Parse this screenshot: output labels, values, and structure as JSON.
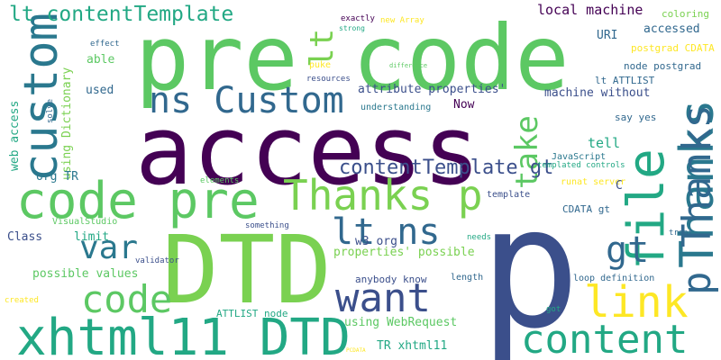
{
  "colors": {
    "background": "#ffffff",
    "palette": [
      "#440154",
      "#414487",
      "#2a788e",
      "#22a884",
      "#7ad151",
      "#fde725",
      "#5cc863",
      "#31688e"
    ]
  },
  "words": [
    {
      "text": "p",
      "color": "#3b4f8b"
    },
    {
      "text": "access",
      "color": "#440154"
    },
    {
      "text": "pre code",
      "color": "#5cc863"
    },
    {
      "text": "DTD",
      "color": "#7ad151"
    },
    {
      "text": "code pre",
      "color": "#5cc863"
    },
    {
      "text": "custom",
      "color": "#2a788e"
    },
    {
      "text": "file",
      "color": "#22a884"
    },
    {
      "text": "Thanks",
      "color": "#2a788e"
    },
    {
      "text": "xhtml11 DTD",
      "color": "#22a884"
    },
    {
      "text": "ns Custom",
      "color": "#31688e"
    },
    {
      "text": "Thanks p",
      "color": "#7ad151"
    },
    {
      "text": "link",
      "color": "#fde725"
    },
    {
      "text": "content",
      "color": "#22a884"
    },
    {
      "text": "want",
      "color": "#3b4f8b"
    },
    {
      "text": "code",
      "color": "#5cc863"
    },
    {
      "text": "lt ns",
      "color": "#31688e"
    },
    {
      "text": "var",
      "color": "#2a788e"
    },
    {
      "text": "gt",
      "color": "#31688e"
    },
    {
      "text": "p Thanks",
      "color": "#31688e"
    },
    {
      "text": "take",
      "color": "#5cc863"
    },
    {
      "text": "lt",
      "color": "#7ad151"
    },
    {
      "text": "lt contentTemplate",
      "color": "#22a884"
    },
    {
      "text": "contentTemplate gt",
      "color": "#3b4f8b"
    },
    {
      "text": "local machine",
      "color": "#440154"
    },
    {
      "text": "coloring",
      "color": "#7ad151"
    },
    {
      "text": "accessed",
      "color": "#31688e"
    },
    {
      "text": "URI",
      "color": "#31688e"
    },
    {
      "text": "postgrad CDATA",
      "color": "#fde725"
    },
    {
      "text": "node postgrad",
      "color": "#31688e"
    },
    {
      "text": "lt ATTLIST",
      "color": "#31688e"
    },
    {
      "text": "machine without",
      "color": "#3b4f8b"
    },
    {
      "text": "say yes",
      "color": "#31688e"
    },
    {
      "text": "attribute properties'",
      "color": "#3b4f8b"
    },
    {
      "text": "Now",
      "color": "#440154"
    },
    {
      "text": "used",
      "color": "#31688e"
    },
    {
      "text": "able",
      "color": "#5cc863"
    },
    {
      "text": "effect",
      "color": "#31688e"
    },
    {
      "text": "exactly",
      "color": "#440154"
    },
    {
      "text": "new Array",
      "color": "#fde725"
    },
    {
      "text": "strong",
      "color": "#22a884"
    },
    {
      "text": "puke",
      "color": "#fde725"
    },
    {
      "text": "difference",
      "color": "#5cc863"
    },
    {
      "text": "resources",
      "color": "#3b4f8b"
    },
    {
      "text": "understanding",
      "color": "#2a788e"
    },
    {
      "text": "using Dictionary",
      "color": "#7ad151"
    },
    {
      "text": "web access",
      "color": "#22a884"
    },
    {
      "text": "solve",
      "color": "#31688e"
    },
    {
      "text": "org TR",
      "color": "#2a788e"
    },
    {
      "text": "tell",
      "color": "#22a884"
    },
    {
      "text": "JavaScript",
      "color": "#2a788e"
    },
    {
      "text": "templated controls",
      "color": "#22a884"
    },
    {
      "text": "elements",
      "color": "#5cc863"
    },
    {
      "text": "runat server",
      "color": "#fde725"
    },
    {
      "text": "template",
      "color": "#3b4f8b"
    },
    {
      "text": "C",
      "color": "#3b4f8b"
    },
    {
      "text": "CDATA gt",
      "color": "#31688e"
    },
    {
      "text": "VisualStudio",
      "color": "#5cc863"
    },
    {
      "text": "Class",
      "color": "#3b4f8b"
    },
    {
      "text": "limit",
      "color": "#22a884"
    },
    {
      "text": "something",
      "color": "#3b4f8b"
    },
    {
      "text": "needs",
      "color": "#22a884"
    },
    {
      "text": "treat",
      "color": "#31688e"
    },
    {
      "text": "w3 org",
      "color": "#3b4f8b"
    },
    {
      "text": "properties' possible",
      "color": "#7ad151"
    },
    {
      "text": "possible values",
      "color": "#5cc863"
    },
    {
      "text": "validator",
      "color": "#3b4f8b"
    },
    {
      "text": "anybody know",
      "color": "#3b4f8b"
    },
    {
      "text": "length",
      "color": "#31688e"
    },
    {
      "text": "loop definition",
      "color": "#31688e"
    },
    {
      "text": "created",
      "color": "#fde725"
    },
    {
      "text": "ATTLIST node",
      "color": "#22a884"
    },
    {
      "text": "using WebRequest",
      "color": "#5cc863"
    },
    {
      "text": "got",
      "color": "#22a884"
    },
    {
      "text": "TR xhtml11",
      "color": "#22a884"
    },
    {
      "text": "PCDATA",
      "color": "#fde725"
    }
  ]
}
